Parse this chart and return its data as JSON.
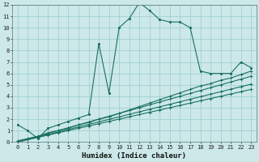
{
  "xlabel": "Humidex (Indice chaleur)",
  "bg_color": "#cce8e8",
  "grid_color": "#99cccc",
  "line_color": "#1a7060",
  "xlim": [
    -0.5,
    23.5
  ],
  "ylim": [
    0,
    12
  ],
  "xticks": [
    0,
    1,
    2,
    3,
    4,
    5,
    6,
    7,
    8,
    9,
    10,
    11,
    12,
    13,
    14,
    15,
    16,
    17,
    18,
    19,
    20,
    21,
    22,
    23
  ],
  "yticks": [
    0,
    1,
    2,
    3,
    4,
    5,
    6,
    7,
    8,
    9,
    10,
    11,
    12
  ],
  "series": [
    [
      1.5,
      1.0,
      0.3,
      1.2,
      1.5,
      1.8,
      2.1,
      2.4,
      8.6,
      4.3,
      10.0,
      10.8,
      12.2,
      11.5,
      10.7,
      10.5,
      10.5,
      10.0,
      6.2,
      6.0,
      6.0,
      6.0,
      7.0,
      6.5
    ],
    [
      0.1,
      0.3,
      0.5,
      0.8,
      1.0,
      1.2,
      1.5,
      1.7,
      2.0,
      2.2,
      2.5,
      2.8,
      3.1,
      3.4,
      3.7,
      4.0,
      4.3,
      4.6,
      4.9,
      5.1,
      5.4,
      5.6,
      5.9,
      6.2
    ],
    [
      0.0,
      0.25,
      0.5,
      0.75,
      1.0,
      1.25,
      1.5,
      1.75,
      2.0,
      2.25,
      2.5,
      2.75,
      3.0,
      3.25,
      3.5,
      3.75,
      4.0,
      4.25,
      4.5,
      4.75,
      5.0,
      5.25,
      5.5,
      5.75
    ],
    [
      0.0,
      0.22,
      0.44,
      0.66,
      0.88,
      1.1,
      1.32,
      1.54,
      1.76,
      1.98,
      2.2,
      2.42,
      2.64,
      2.86,
      3.08,
      3.3,
      3.52,
      3.74,
      3.96,
      4.18,
      4.4,
      4.62,
      4.84,
      5.06
    ],
    [
      0.0,
      0.2,
      0.4,
      0.6,
      0.8,
      1.0,
      1.2,
      1.4,
      1.6,
      1.8,
      2.0,
      2.2,
      2.4,
      2.6,
      2.8,
      3.0,
      3.2,
      3.4,
      3.6,
      3.8,
      4.0,
      4.2,
      4.4,
      4.6
    ]
  ],
  "markers": [
    ".",
    "+",
    "+",
    "+",
    "+"
  ],
  "line_width": 0.8,
  "marker_size": 3.0,
  "tick_fontsize": 5.0,
  "xlabel_fontsize": 6.5
}
